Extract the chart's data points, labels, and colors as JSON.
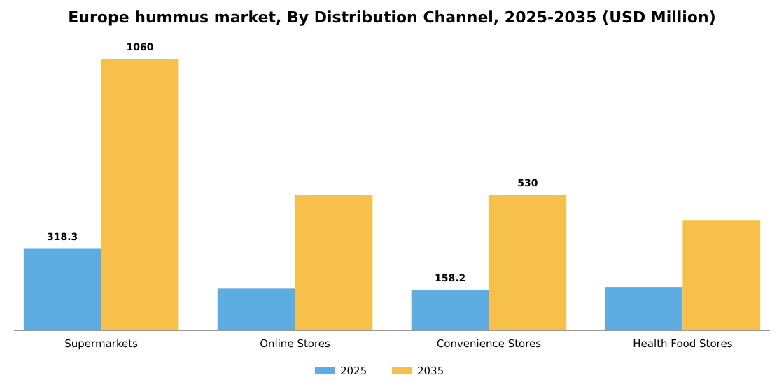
{
  "chart_data": {
    "type": "bar",
    "title": "Europe hummus market, By Distribution Channel, 2025-2035 (USD Million)",
    "categories": [
      "Supermarkets",
      "Online Stores",
      "Convenience Stores",
      "Health Food Stores"
    ],
    "series": [
      {
        "name": "2025",
        "color": "#5dade2",
        "values": [
          318.3,
          163,
          158.2,
          169
        ],
        "value_labels": [
          "318.3",
          null,
          "158.2",
          null
        ]
      },
      {
        "name": "2035",
        "color": "#f7c04a",
        "values": [
          1060,
          530,
          530,
          431
        ],
        "value_labels": [
          "1060",
          null,
          "530",
          null
        ]
      }
    ],
    "tick_labels": "x",
    "legend": "bottom"
  }
}
